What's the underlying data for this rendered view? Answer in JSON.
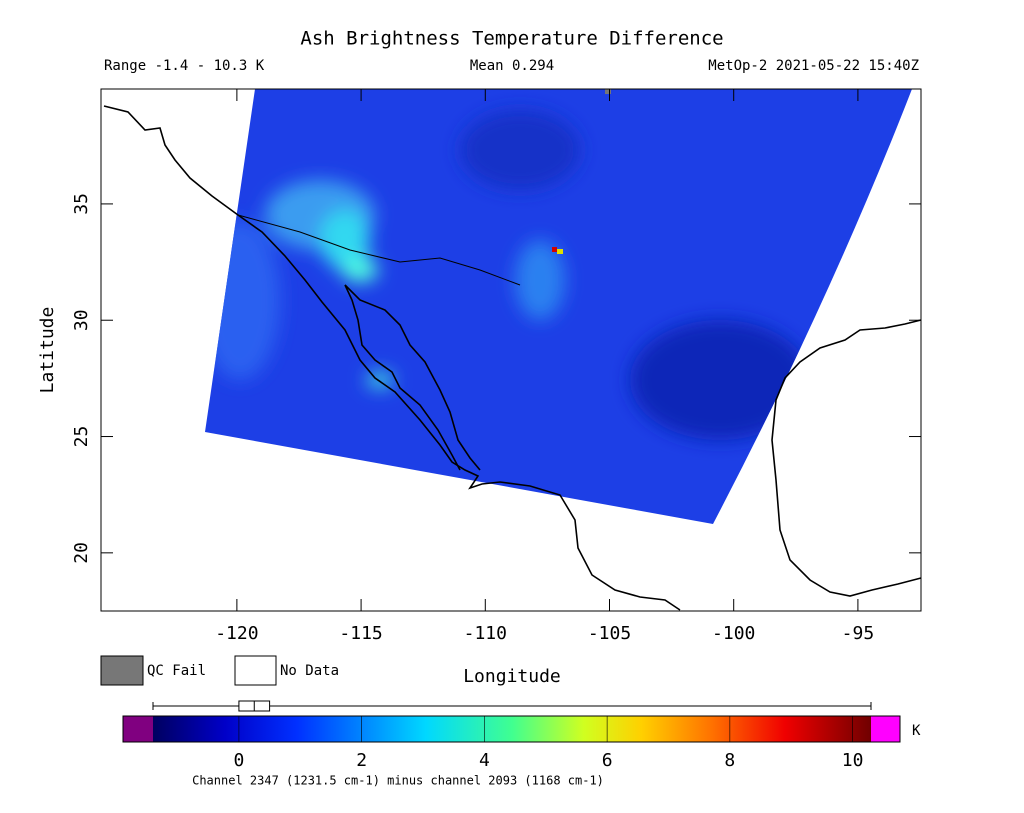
{
  "title": "Ash Brightness Temperature Difference",
  "header": {
    "range": "Range -1.4 - 10.3 K",
    "mean": "Mean 0.294",
    "satellite": "MetOp-2 2021-05-22 15:40Z"
  },
  "map": {
    "xlabel": "Longitude",
    "ylabel": "Latitude",
    "xlim": [
      -125.47,
      -92.46
    ],
    "ylim": [
      17.5,
      39.94
    ],
    "xticks": [
      -120,
      -115,
      -110,
      -105,
      -100,
      -95
    ],
    "yticks": [
      20,
      25,
      30,
      35
    ]
  },
  "legend": [
    "QC Fail",
    "No Data"
  ],
  "colorbar": {
    "lim": [
      -1.4,
      10.3
    ],
    "ticks": [
      0,
      2,
      4,
      6,
      8,
      10
    ],
    "unit": "K",
    "boxplot": {
      "min": -1.4,
      "q1": 0,
      "median": 0.25,
      "q3": 0.5,
      "max": 10.3
    }
  },
  "footer": "Channel 2347 (1231.5 cm-1) minus channel 2093 (1168 cm-1)"
}
